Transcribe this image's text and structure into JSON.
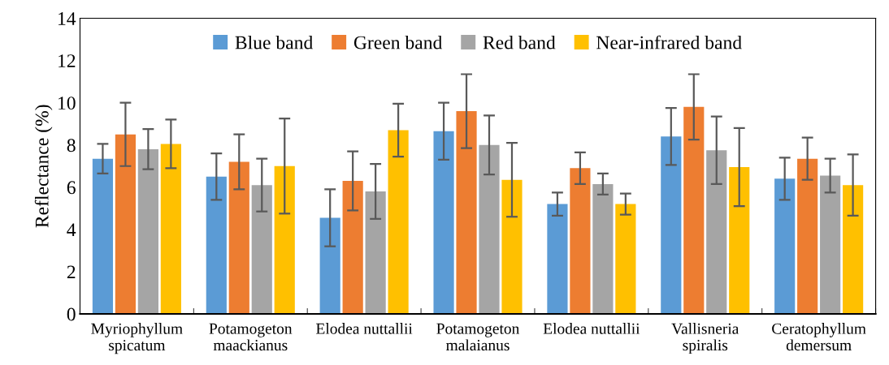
{
  "chart_data": {
    "type": "bar",
    "ylabel": "Reflectance (%)",
    "categories": [
      "Myriophyllum\nspicatum",
      "Potamogeton\nmaackianus",
      "Elodea nuttallii",
      "Potamogeton\nmalaianus",
      "Elodea nuttallii",
      "Vallisneria\nspiralis",
      "Ceratophyllum\ndemersum"
    ],
    "series": [
      {
        "name": "Blue band",
        "color": "#5b9bd5",
        "values": [
          7.35,
          6.5,
          4.55,
          8.65,
          5.2,
          8.4,
          6.4
        ],
        "errors": [
          0.7,
          1.1,
          1.35,
          1.35,
          0.55,
          1.35,
          1.0
        ]
      },
      {
        "name": "Green band",
        "color": "#ed7d31",
        "values": [
          8.5,
          7.2,
          6.3,
          9.6,
          6.9,
          9.8,
          7.35
        ],
        "errors": [
          1.5,
          1.3,
          1.4,
          1.75,
          0.75,
          1.55,
          1.0
        ]
      },
      {
        "name": "Red band",
        "color": "#a5a5a5",
        "values": [
          7.8,
          6.1,
          5.8,
          8.0,
          6.15,
          7.75,
          6.55
        ],
        "errors": [
          0.95,
          1.25,
          1.3,
          1.4,
          0.5,
          1.6,
          0.8
        ]
      },
      {
        "name": "Near-infrared band",
        "color": "#ffc000",
        "values": [
          8.05,
          7.0,
          8.7,
          6.35,
          5.2,
          6.95,
          6.1
        ],
        "errors": [
          1.15,
          2.25,
          1.25,
          1.75,
          0.5,
          1.85,
          1.45
        ]
      }
    ],
    "ylim": [
      0,
      14
    ],
    "yticks": [
      0,
      2,
      4,
      6,
      8,
      10,
      12,
      14
    ],
    "grid": false,
    "legend": "top"
  }
}
